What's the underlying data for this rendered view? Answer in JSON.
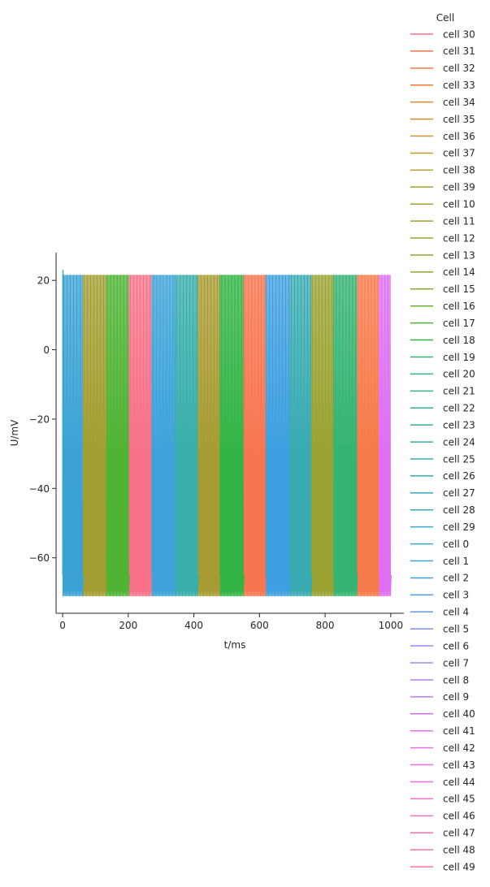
{
  "chart_data": {
    "type": "line",
    "xlabel": "t/ms",
    "ylabel": "U/mV",
    "xlim": [
      -20,
      1040
    ],
    "ylim": [
      -76,
      28
    ],
    "x_ticks": [
      0,
      200,
      400,
      600,
      800,
      1000
    ],
    "y_ticks": [
      -60,
      -40,
      -20,
      0,
      20
    ],
    "x_tick_labels": [
      "0",
      "200",
      "400",
      "600",
      "800",
      "1000"
    ],
    "y_tick_labels": [
      "−60",
      "−40",
      "−20",
      "0",
      "20"
    ],
    "grid": false,
    "legend": {
      "title": "Cell",
      "placement": "right"
    },
    "series_style": {
      "spike_peak_mv": 21.5,
      "spike_trough_mv": -71,
      "rest_mv": -65,
      "spike_spacing_ms": 3.3
    },
    "series": [
      {
        "name": "cell 30",
        "color": "#f77189",
        "active": [
          [
            203,
            272
          ]
        ]
      },
      {
        "name": "cell 31",
        "color": "#f7754f",
        "active": [
          [
            552,
            620
          ]
        ]
      },
      {
        "name": "cell 32",
        "color": "#f77a4a",
        "active": [
          [
            896,
            965
          ]
        ]
      },
      {
        "name": "cell 33",
        "color": "#f37932"
      },
      {
        "name": "cell 34",
        "color": "#e18a31"
      },
      {
        "name": "cell 35",
        "color": "#d58b31"
      },
      {
        "name": "cell 36",
        "color": "#c99331"
      },
      {
        "name": "cell 37",
        "color": "#bb9832"
      },
      {
        "name": "cell 38",
        "color": "#b59c32"
      },
      {
        "name": "cell 39",
        "color": "#ad9c32"
      },
      {
        "name": "cell 10",
        "color": "#a39e32",
        "active": [
          [
            62,
            134
          ]
        ]
      },
      {
        "name": "cell 11",
        "color": "#a79c32",
        "active": [
          [
            412,
            480
          ]
        ]
      },
      {
        "name": "cell 12",
        "color": "#9aa331",
        "active": [
          [
            758,
            826
          ]
        ]
      },
      {
        "name": "cell 13",
        "color": "#91a531"
      },
      {
        "name": "cell 14",
        "color": "#89a832"
      },
      {
        "name": "cell 15",
        "color": "#7dad31"
      },
      {
        "name": "cell 16",
        "color": "#6bb032"
      },
      {
        "name": "cell 17",
        "color": "#4fb333",
        "active": [
          [
            134,
            203
          ]
        ]
      },
      {
        "name": "cell 18",
        "color": "#33b446",
        "active": [
          [
            480,
            552
          ]
        ]
      },
      {
        "name": "cell 19",
        "color": "#34b372",
        "active": [
          [
            826,
            896
          ]
        ]
      },
      {
        "name": "cell 20",
        "color": "#35b186"
      },
      {
        "name": "cell 21",
        "color": "#35b092"
      },
      {
        "name": "cell 22",
        "color": "#36af9c"
      },
      {
        "name": "cell 23",
        "color": "#36ada4"
      },
      {
        "name": "cell 24",
        "color": "#37aeaa",
        "active": [
          [
            344,
            412
          ]
        ]
      },
      {
        "name": "cell 25",
        "color": "#37abb1",
        "active": [
          [
            690,
            758
          ]
        ]
      },
      {
        "name": "cell 26",
        "color": "#38a9b8"
      },
      {
        "name": "cell 27",
        "color": "#39a8be"
      },
      {
        "name": "cell 28",
        "color": "#3aa6c5"
      },
      {
        "name": "cell 29",
        "color": "#3ba4cd"
      },
      {
        "name": "cell 0",
        "color": "#3ca2d6",
        "active": [
          [
            0,
            62
          ]
        ]
      },
      {
        "name": "cell 1",
        "color": "#3da3d9",
        "active": [
          [
            272,
            344
          ]
        ]
      },
      {
        "name": "cell 2",
        "color": "#3e9fe0",
        "active": [
          [
            620,
            690
          ]
        ]
      },
      {
        "name": "cell 3",
        "color": "#4a9be8"
      },
      {
        "name": "cell 4",
        "color": "#6196f3"
      },
      {
        "name": "cell 5",
        "color": "#7e90f4"
      },
      {
        "name": "cell 6",
        "color": "#9489f4"
      },
      {
        "name": "cell 7",
        "color": "#a783f4"
      },
      {
        "name": "cell 8",
        "color": "#b77df4"
      },
      {
        "name": "cell 9",
        "color": "#c477f4"
      },
      {
        "name": "cell 40",
        "color": "#d372f4"
      },
      {
        "name": "cell 41",
        "color": "#e06ef4",
        "active": [
          [
            965,
            1000
          ]
        ]
      },
      {
        "name": "cell 42",
        "color": "#ee6cf1"
      },
      {
        "name": "cell 43",
        "color": "#f56ce5"
      },
      {
        "name": "cell 44",
        "color": "#f56ed8"
      },
      {
        "name": "cell 45",
        "color": "#f56fcc"
      },
      {
        "name": "cell 46",
        "color": "#f570bf"
      },
      {
        "name": "cell 47",
        "color": "#f672b1"
      },
      {
        "name": "cell 48",
        "color": "#f674a2"
      },
      {
        "name": "cell 49",
        "color": "#f67593"
      }
    ]
  }
}
